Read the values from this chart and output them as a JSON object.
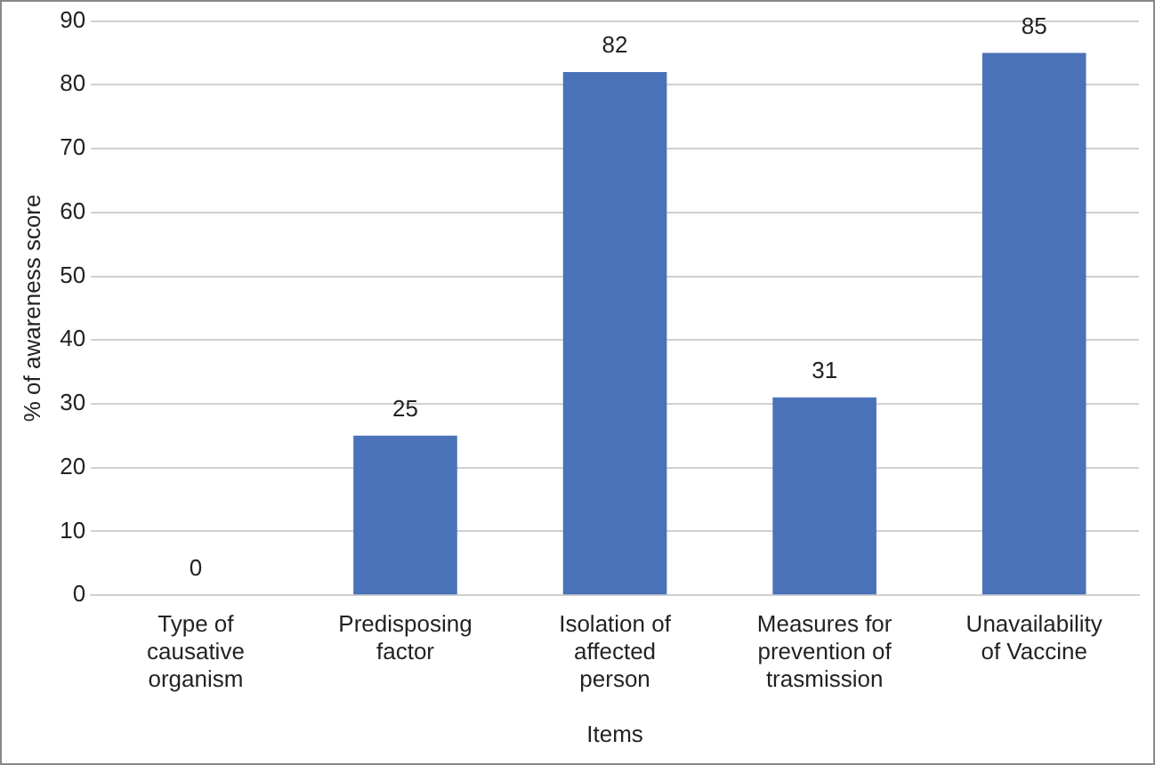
{
  "chart_data": {
    "type": "bar",
    "xlabel": "Items",
    "ylabel": "% of awareness score",
    "categories": [
      "Type of causative organism",
      "Predisposing factor",
      "Isolation of affected person",
      "Measures for prevention of trasmission",
      "Unavailability of Vaccine"
    ],
    "values": [
      0,
      25,
      82,
      31,
      85
    ],
    "color": "#4a72b8",
    "ylim": [
      0,
      90
    ],
    "yticks": [
      0,
      10,
      20,
      30,
      40,
      50,
      60,
      70,
      80,
      90
    ],
    "grid": "y",
    "data_labels": true,
    "legend": false
  }
}
